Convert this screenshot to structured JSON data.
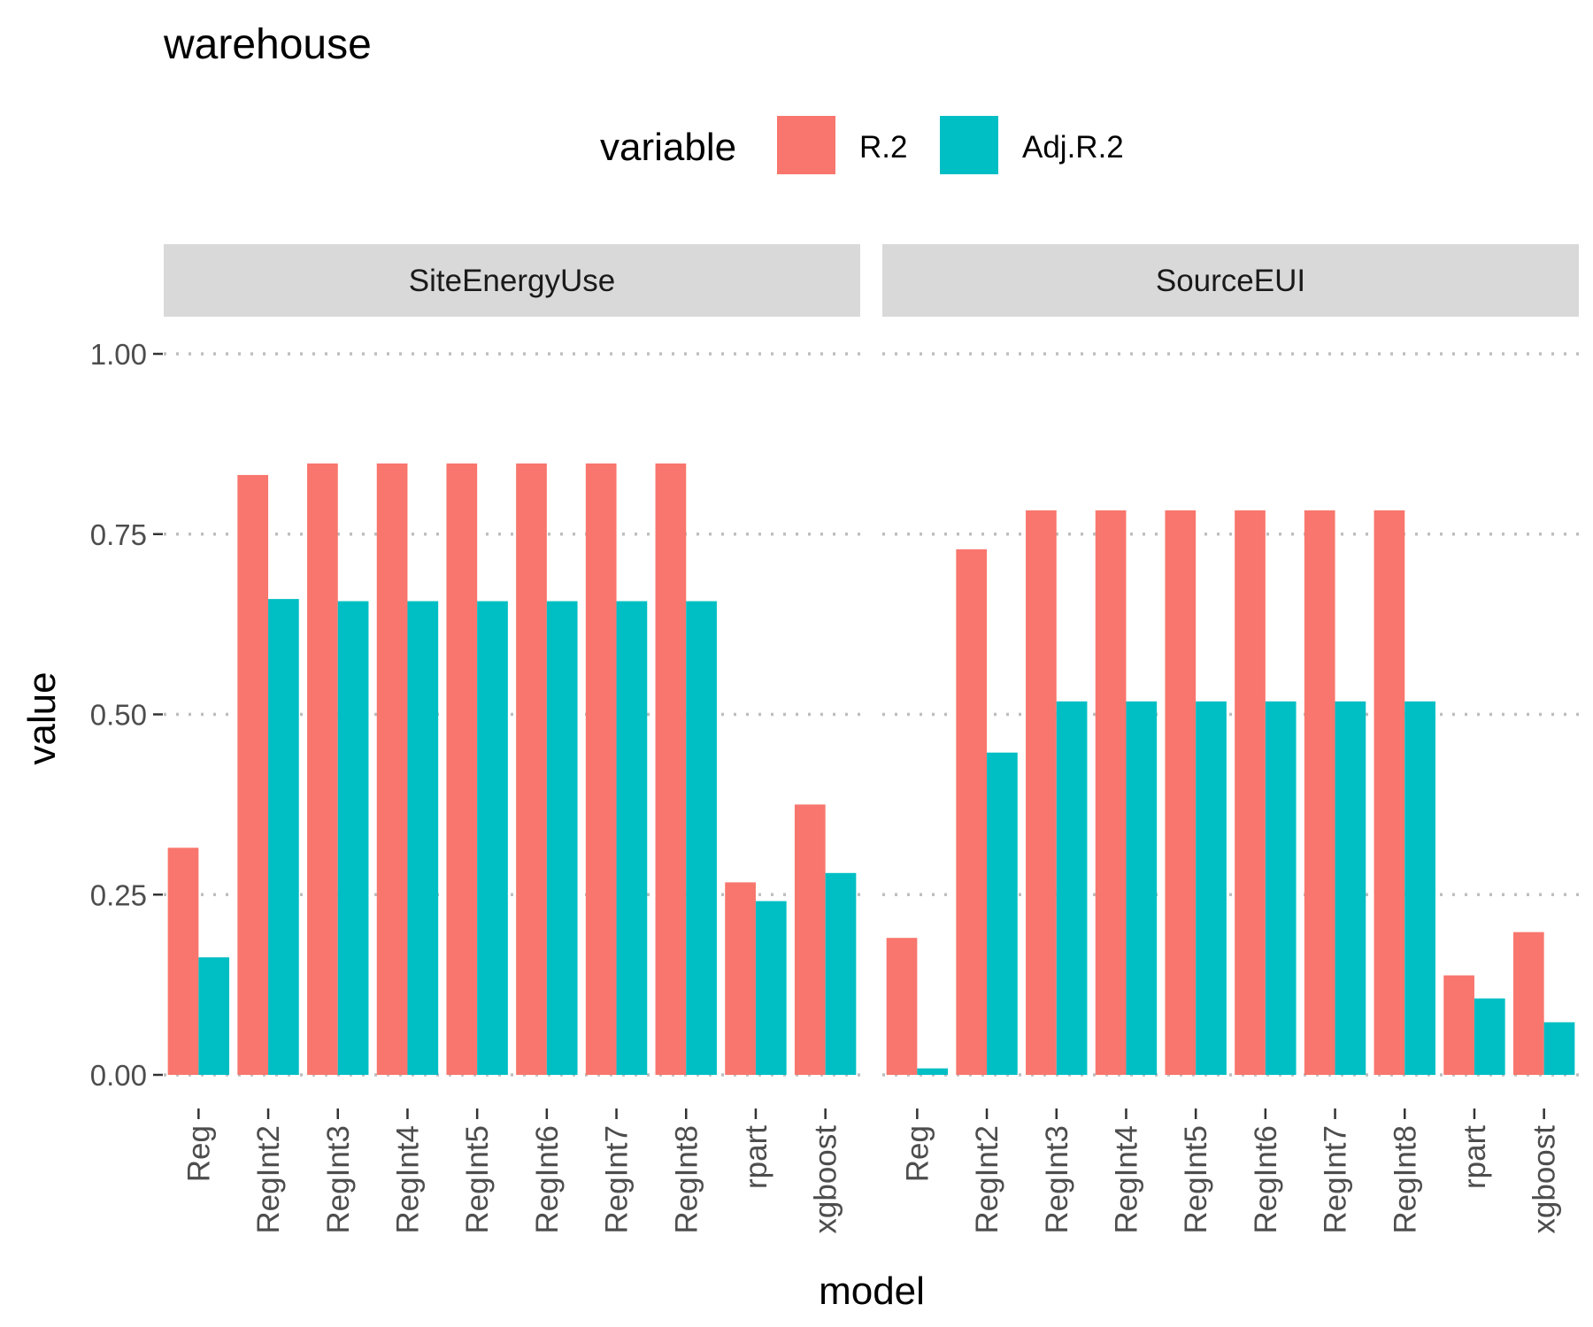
{
  "chart_data": {
    "type": "bar",
    "title": "warehouse",
    "xlabel": "model",
    "ylabel": "value",
    "ylim": [
      0,
      1
    ],
    "y_ticks": [
      "0.00",
      "0.25",
      "0.50",
      "0.75",
      "1.00"
    ],
    "y_tick_values": [
      0,
      0.25,
      0.5,
      0.75,
      1.0
    ],
    "grid": "major y dotted",
    "legend": {
      "title": "variable",
      "position": "top",
      "items": [
        {
          "name": "R.2",
          "color": "#F8766D"
        },
        {
          "name": "Adj.R.2",
          "color": "#00BFC4"
        }
      ]
    },
    "categories": [
      "Reg",
      "RegInt2",
      "RegInt3",
      "RegInt4",
      "RegInt5",
      "RegInt6",
      "RegInt7",
      "RegInt8",
      "rpart",
      "xgboost"
    ],
    "panels": [
      {
        "facet": "SiteEnergyUse",
        "series": [
          {
            "name": "R.2",
            "values": [
              0.315,
              0.832,
              0.848,
              0.848,
              0.848,
              0.848,
              0.848,
              0.848,
              0.267,
              0.375
            ]
          },
          {
            "name": "Adj.R.2",
            "values": [
              0.163,
              0.66,
              0.657,
              0.657,
              0.657,
              0.657,
              0.657,
              0.657,
              0.241,
              0.28
            ]
          }
        ]
      },
      {
        "facet": "SourceEUI",
        "series": [
          {
            "name": "R.2",
            "values": [
              0.19,
              0.729,
              0.783,
              0.783,
              0.783,
              0.783,
              0.783,
              0.783,
              0.138,
              0.198
            ]
          },
          {
            "name": "Adj.R.2",
            "values": [
              0.009,
              0.447,
              0.518,
              0.518,
              0.518,
              0.518,
              0.518,
              0.518,
              0.106,
              0.073
            ]
          }
        ]
      }
    ]
  }
}
